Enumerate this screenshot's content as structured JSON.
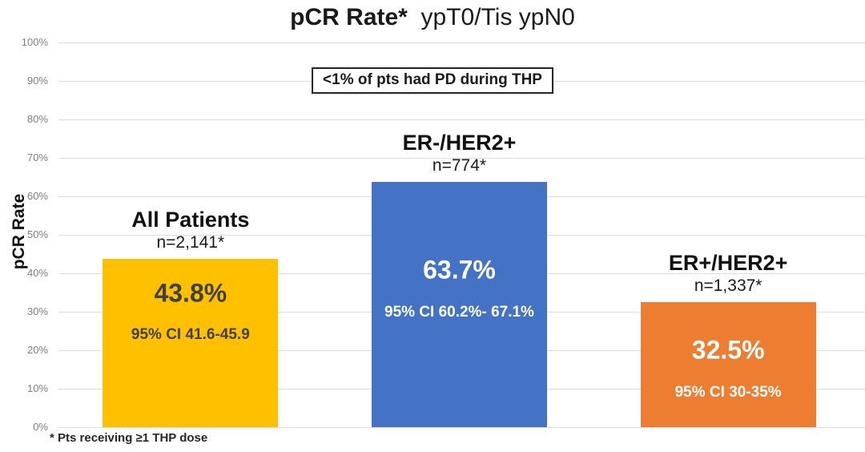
{
  "title": {
    "bold": "pCR Rate*",
    "rest": "  ypT0/Tis ypN0"
  },
  "annotation": "<1% of pts had PD during THP",
  "footnote": "* Pts receiving ≥1 THP dose",
  "chart_data": {
    "type": "bar",
    "title": "pCR Rate* ypT0/Tis ypN0",
    "xlabel": "",
    "ylabel": "pCR Rate",
    "ylim": [
      0,
      100
    ],
    "yticks": [
      "0%",
      "10%",
      "20%",
      "30%",
      "40%",
      "50%",
      "60%",
      "70%",
      "80%",
      "90%",
      "100%"
    ],
    "grid": true,
    "legend": false,
    "annotation": "<1% of pts had PD during THP",
    "footnote": "* Pts receiving ≥1 THP dose",
    "categories": [
      "All Patients",
      "ER-/HER2+",
      "ER+/HER2+"
    ],
    "series": [
      {
        "name": "pCR Rate",
        "values": [
          43.8,
          63.7,
          32.5
        ]
      }
    ],
    "bars": [
      {
        "category": "All Patients",
        "n_label": "n=2,141*",
        "value": 43.8,
        "value_label": "43.8%",
        "ci_label": "95% CI 41.6-45.9",
        "color": "#FFC000",
        "text_color": "#404040"
      },
      {
        "category": "ER-/HER2+",
        "n_label": "n=774*",
        "value": 63.7,
        "value_label": "63.7%",
        "ci_label": "95% CI 60.2%- 67.1%",
        "color": "#4472C4",
        "text_color": "#FFFFFF"
      },
      {
        "category": "ER+/HER2+",
        "n_label": "n=1,337*",
        "value": 32.5,
        "value_label": "32.5%",
        "ci_label": "95% CI 30-35%",
        "color": "#ED7D31",
        "text_color": "#FFFFFF"
      }
    ]
  },
  "colors": {
    "background": "#FFFFFF",
    "gridline": "#DCDCDC",
    "tick_label": "#7F7F7F",
    "text": "#1A1A1A",
    "bar_all_patients": "#FFC000",
    "bar_er_neg_her2_pos": "#4472C4",
    "bar_er_pos_her2_pos": "#ED7D31"
  }
}
